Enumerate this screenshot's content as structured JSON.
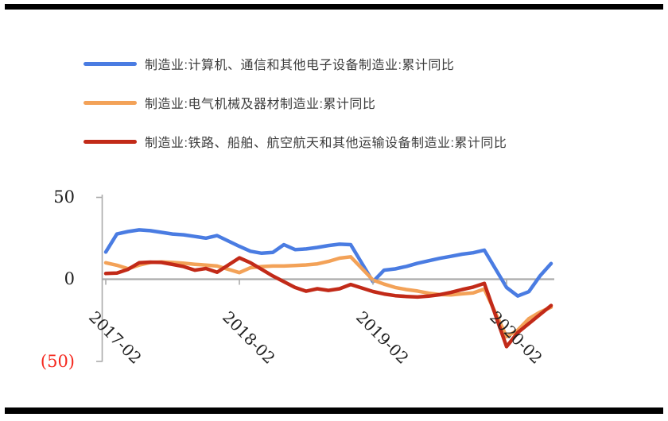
{
  "chart_data": {
    "type": "line",
    "title": "",
    "legend_position": "top-left",
    "grid": "zero-line-only",
    "x": [
      "2017-02",
      "2017-03",
      "2017-04",
      "2017-05",
      "2017-06",
      "2017-07",
      "2017-08",
      "2017-09",
      "2017-10",
      "2017-11",
      "2017-12",
      "2018-02",
      "2018-03",
      "2018-04",
      "2018-05",
      "2018-06",
      "2018-07",
      "2018-08",
      "2018-09",
      "2018-10",
      "2018-11",
      "2018-12",
      "2019-02",
      "2019-03",
      "2019-04",
      "2019-05",
      "2019-06",
      "2019-07",
      "2019-08",
      "2019-09",
      "2019-10",
      "2019-11",
      "2019-12",
      "2020-02",
      "2020-03",
      "2020-04",
      "2020-05",
      "2020-06"
    ],
    "series": [
      {
        "name": "制造业:计算机、通信和其他电子设备制造业:累计同比",
        "color": "#4a7ce2",
        "values": [
          16.5,
          27.5,
          29,
          30,
          29.5,
          28.5,
          27.5,
          27,
          26,
          25,
          26.5,
          20,
          17,
          15.8,
          16.3,
          21,
          18,
          18.4,
          19.3,
          20.5,
          21.3,
          21,
          -1.5,
          5.5,
          6.3,
          7.8,
          9.7,
          11.2,
          12.7,
          13.9,
          15.2,
          16.1,
          17.7,
          -5,
          -10.2,
          -7.6,
          2,
          9.5
        ]
      },
      {
        "name": "制造业:电气机械及器材制造业:累计同比",
        "color": "#f3a258",
        "values": [
          10,
          8.5,
          6.4,
          8.6,
          10.2,
          10.5,
          10.2,
          9.7,
          9.1,
          8.6,
          8,
          4,
          7,
          7.7,
          8,
          8,
          8.3,
          8.7,
          9.3,
          10.8,
          12.8,
          13.6,
          -0.5,
          -3,
          -5,
          -6.3,
          -7.2,
          -8.5,
          -9.3,
          -9.5,
          -8.9,
          -8.3,
          -6,
          -35,
          -31,
          -24,
          -20,
          -17
        ]
      },
      {
        "name": "制造业:铁路、船舶、航空航天和其他运输设备制造业:累计同比",
        "color": "#c22a18",
        "values": [
          3.5,
          3.7,
          6,
          10,
          10.4,
          10.2,
          9,
          7.7,
          5.5,
          6.5,
          4.2,
          13,
          10,
          6,
          2,
          -1.5,
          -5,
          -7.3,
          -5.8,
          -6.8,
          -5.8,
          -3.2,
          -7.5,
          -9,
          -10,
          -10.5,
          -10.8,
          -10.3,
          -9.4,
          -8,
          -6.3,
          -4.8,
          -2.5,
          -41,
          -32.5,
          -27,
          -21.5,
          -16
        ]
      }
    ],
    "y_axis": {
      "range": [
        -50,
        50
      ],
      "negative_in_parentheses": true,
      "ticks": [
        {
          "label": "50",
          "value": 50,
          "color": "#1f1f1f"
        },
        {
          "label": "0",
          "value": 0,
          "color": "#1f1f1f"
        },
        {
          "label": "(50)",
          "value": -50,
          "color": "#f5281e"
        }
      ]
    },
    "x_axis": {
      "label_rotation_deg": 45,
      "ticks": [
        "2017-02",
        "2018-02",
        "2019-02",
        "2020-02"
      ]
    }
  }
}
